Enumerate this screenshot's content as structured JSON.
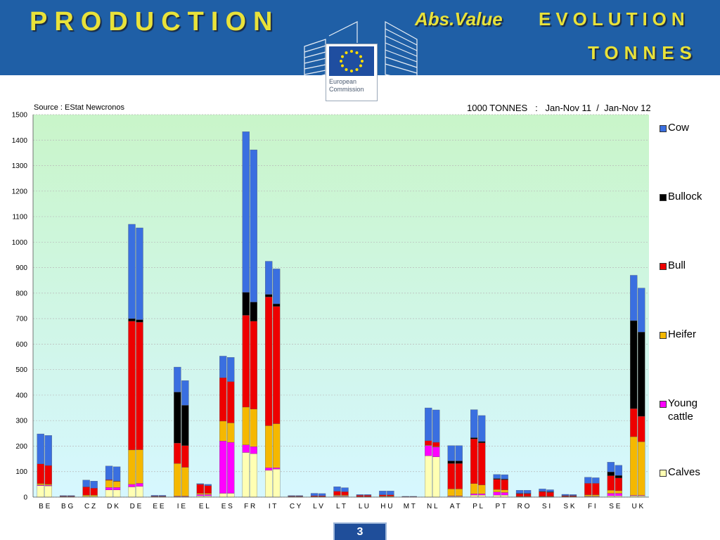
{
  "header": {
    "title_left": "PRODUCTION",
    "title_abs": "Abs.Value",
    "title_evolution": "EVOLUTION",
    "title_tonnes": "TONNES",
    "logo_line1": "European",
    "logo_line2": "Commission"
  },
  "source": "Source : EStat Newcronos",
  "period": "1000 TONNES   :   Jan-Nov 11  /  Jan-Nov 12",
  "page_number": "3",
  "colors": {
    "Calves": "#ffffb3",
    "Young cattle": "#ff00ff",
    "Heifer": "#f5b800",
    "Bull": "#ee0000",
    "Bullock": "#000000",
    "Cow": "#3a6fe0",
    "header_bg": "#1f5fa6",
    "title_yellow": "#e8e23a"
  },
  "legend": [
    "Cow",
    "Bullock",
    "Bull",
    "Heifer",
    "Young cattle",
    "Calves"
  ],
  "chart_data": {
    "type": "bar",
    "stacked": true,
    "title": "",
    "ylim": [
      0,
      1500
    ],
    "yticks": [
      0,
      100,
      200,
      300,
      400,
      500,
      600,
      700,
      800,
      900,
      1000,
      1100,
      1200,
      1300,
      1400,
      1500
    ],
    "categories": [
      "B E",
      "B G",
      "C Z",
      "D K",
      "D E",
      "E E",
      "I E",
      "E L",
      "E S",
      "F R",
      "I T",
      "C Y",
      "L V",
      "L T",
      "L U",
      "H U",
      "M T",
      "N L",
      "A T",
      "P L",
      "P T",
      "R O",
      "S I",
      "S K",
      "F I",
      "S E",
      "U K"
    ],
    "periods": [
      "Jan-Nov 11",
      "Jan-Nov 12"
    ],
    "series_order": [
      "Calves",
      "Young cattle",
      "Heifer",
      "Bull",
      "Bullock",
      "Cow"
    ],
    "data": {
      "B E": [
        [
          45,
          3,
          5,
          77,
          0,
          118
        ],
        [
          44,
          3,
          4,
          73,
          0,
          118
        ]
      ],
      "B G": [
        [
          1,
          0,
          1,
          2,
          0,
          2
        ],
        [
          1,
          0,
          1,
          2,
          0,
          2
        ]
      ],
      "C Z": [
        [
          3,
          0,
          5,
          32,
          0,
          27
        ],
        [
          3,
          0,
          5,
          27,
          0,
          28
        ]
      ],
      "D K": [
        [
          28,
          10,
          28,
          2,
          0,
          54
        ],
        [
          28,
          10,
          23,
          2,
          0,
          56
        ]
      ],
      "D E": [
        [
          40,
          10,
          135,
          505,
          10,
          370
        ],
        [
          42,
          12,
          132,
          500,
          10,
          360
        ]
      ],
      "E E": [
        [
          1,
          0,
          1,
          2,
          0,
          3
        ],
        [
          1,
          0,
          1,
          2,
          0,
          3
        ]
      ],
      "I E": [
        [
          2,
          2,
          128,
          80,
          200,
          98
        ],
        [
          2,
          2,
          113,
          85,
          158,
          97
        ]
      ],
      "E L": [
        [
          5,
          5,
          5,
          35,
          0,
          3
        ],
        [
          5,
          5,
          5,
          30,
          0,
          5
        ]
      ],
      "E S": [
        [
          15,
          205,
          78,
          170,
          0,
          85
        ],
        [
          15,
          200,
          76,
          162,
          0,
          95
        ]
      ],
      "F R": [
        [
          175,
          30,
          148,
          360,
          90,
          630
        ],
        [
          170,
          28,
          147,
          345,
          75,
          597
        ]
      ],
      "I T": [
        [
          105,
          10,
          165,
          505,
          10,
          130
        ],
        [
          110,
          5,
          173,
          460,
          10,
          137
        ]
      ],
      "C Y": [
        [
          1,
          0,
          1,
          2,
          0,
          2
        ],
        [
          1,
          0,
          1,
          2,
          0,
          2
        ]
      ],
      "L V": [
        [
          1,
          0,
          1,
          3,
          0,
          10
        ],
        [
          1,
          0,
          1,
          3,
          0,
          9
        ]
      ],
      "L T": [
        [
          3,
          2,
          3,
          15,
          0,
          18
        ],
        [
          3,
          2,
          3,
          13,
          0,
          16
        ]
      ],
      "L U": [
        [
          1,
          0,
          1,
          5,
          0,
          3
        ],
        [
          1,
          0,
          1,
          5,
          0,
          3
        ]
      ],
      "H U": [
        [
          2,
          0,
          2,
          5,
          0,
          15
        ],
        [
          2,
          0,
          2,
          5,
          0,
          15
        ]
      ],
      "M T": [
        [
          0,
          0,
          0,
          2,
          0,
          1
        ],
        [
          0,
          0,
          0,
          2,
          0,
          1
        ]
      ],
      "N L": [
        [
          162,
          40,
          2,
          17,
          0,
          129
        ],
        [
          158,
          38,
          2,
          17,
          0,
          127
        ]
      ],
      "A T": [
        [
          3,
          2,
          27,
          100,
          10,
          60
        ],
        [
          3,
          2,
          27,
          100,
          10,
          60
        ]
      ],
      "P L": [
        [
          8,
          5,
          40,
          175,
          5,
          110
        ],
        [
          8,
          5,
          35,
          165,
          5,
          102
        ]
      ],
      "P T": [
        [
          8,
          12,
          10,
          40,
          3,
          16
        ],
        [
          8,
          10,
          10,
          40,
          3,
          17
        ]
      ],
      "R O": [
        [
          1,
          1,
          1,
          10,
          2,
          12
        ],
        [
          1,
          1,
          1,
          10,
          2,
          12
        ]
      ],
      "S I": [
        [
          1,
          1,
          1,
          18,
          2,
          9
        ],
        [
          1,
          1,
          1,
          16,
          2,
          8
        ]
      ],
      "S K": [
        [
          1,
          0,
          1,
          3,
          1,
          5
        ],
        [
          1,
          0,
          1,
          3,
          1,
          4
        ]
      ],
      "F I": [
        [
          3,
          1,
          5,
          45,
          0,
          24
        ],
        [
          3,
          1,
          5,
          45,
          0,
          22
        ]
      ],
      "S E": [
        [
          5,
          10,
          12,
          57,
          15,
          38
        ],
        [
          5,
          10,
          10,
          50,
          10,
          40
        ]
      ],
      "U K": [
        [
          5,
          2,
          230,
          110,
          345,
          178
        ],
        [
          5,
          2,
          210,
          100,
          330,
          173
        ]
      ]
    }
  }
}
